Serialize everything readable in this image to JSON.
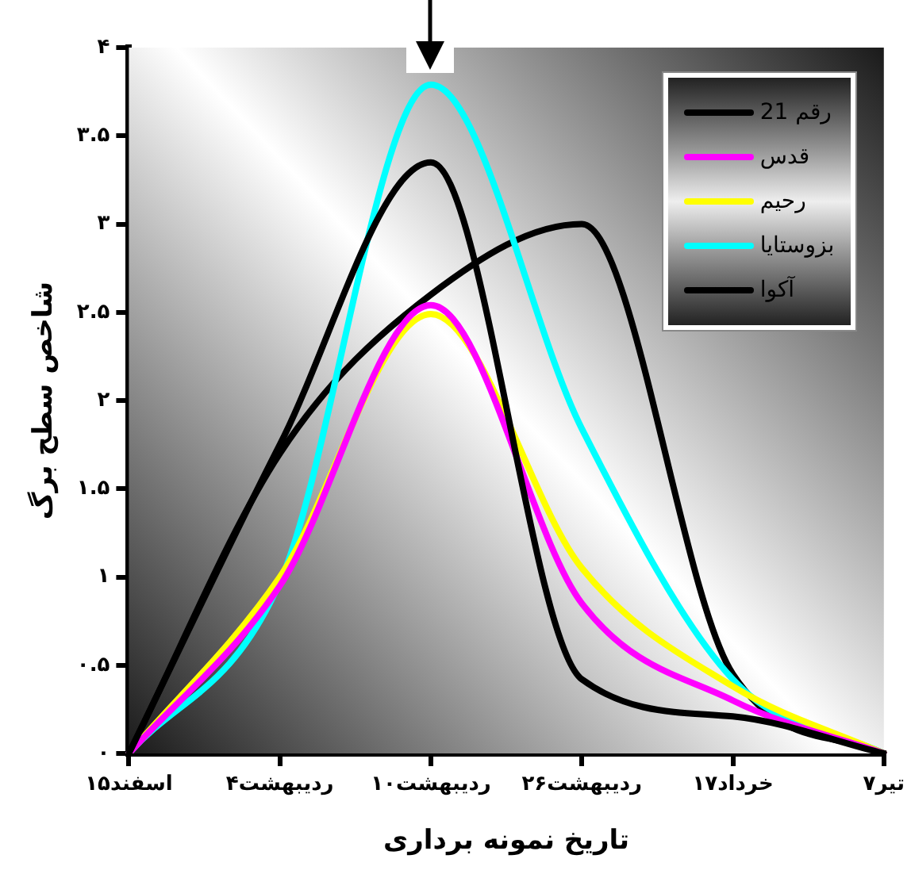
{
  "chart_data": {
    "type": "line",
    "xlabel": "تاریخ نمونه برداری",
    "ylabel": "شاخص سطح برگ",
    "categories": [
      "۱۵اسفند",
      "۴ردیبهشت",
      "۱۰ردیبهشت",
      "۲۶ردیبهشت",
      "۱۷خرداد",
      "۷تیر"
    ],
    "ylim": [
      0,
      4
    ],
    "yticks": [
      {
        "value": 0,
        "label": "۰"
      },
      {
        "value": 0.5,
        "label": "۰.۵"
      },
      {
        "value": 1,
        "label": "۱"
      },
      {
        "value": 1.5,
        "label": "۱.۵"
      },
      {
        "value": 2,
        "label": "۲"
      },
      {
        "value": 2.5,
        "label": "۲.۵"
      },
      {
        "value": 3,
        "label": "۳"
      },
      {
        "value": 3.5,
        "label": "۳.۵"
      },
      {
        "value": 4,
        "label": "۴"
      }
    ],
    "grid": false,
    "legend": "top right",
    "marker": "none",
    "line_style": "solid",
    "series": [
      {
        "name": "رقم 21",
        "color": "#000000",
        "values": [
          0,
          1.75,
          3.35,
          0.42,
          0.21,
          0
        ]
      },
      {
        "name": "قدس",
        "color": "#ff00ff",
        "values": [
          0,
          0.95,
          2.54,
          0.85,
          0.3,
          0
        ]
      },
      {
        "name": "رحیم",
        "color": "#ffff00",
        "values": [
          0,
          1,
          2.49,
          1.05,
          0.38,
          0
        ]
      },
      {
        "name": "بزوستایا",
        "color": "#00ffff",
        "values": [
          0,
          0.97,
          3.79,
          1.84,
          0.42,
          0
        ]
      },
      {
        "name": "آکوا",
        "color": "#000000",
        "values": [
          0,
          1.7,
          2.6,
          3,
          0.45,
          0
        ]
      }
    ]
  }
}
